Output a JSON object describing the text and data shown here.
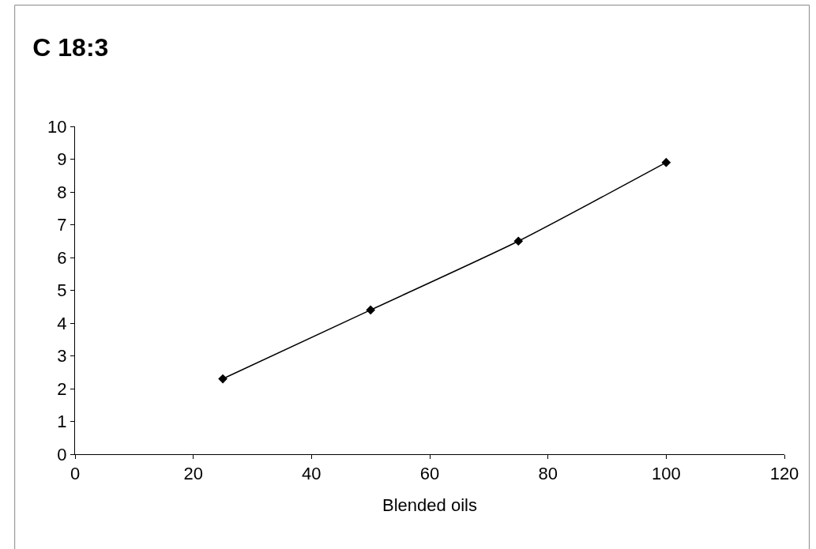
{
  "chart_data": {
    "type": "line",
    "title": "C 18:3",
    "xlabel": "Blended oils",
    "x": [
      25,
      50,
      75,
      100
    ],
    "series": [
      {
        "color": "#000000",
        "values": [
          2.3,
          4.4,
          6.5,
          8.9
        ]
      }
    ],
    "xlim": [
      0,
      120
    ],
    "xticks": [
      0,
      20,
      40,
      60,
      80,
      100,
      120
    ],
    "ylim": [
      0,
      10
    ],
    "yticks": [
      0,
      1,
      2,
      3,
      4,
      5,
      6,
      7,
      8,
      9,
      10
    ],
    "grid": false,
    "legend": false,
    "marker": "diamond",
    "line_style": "solid"
  }
}
